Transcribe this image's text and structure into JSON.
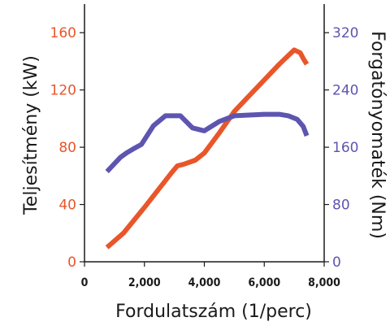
{
  "chart_data": {
    "type": "line",
    "xlabel": "Fordulatszám (1/perc)",
    "ylabel_left": "Teljesítmény (kW)",
    "ylabel_right": "Forgatónyomaték (Nm)",
    "xlim": [
      0,
      8000
    ],
    "ylim_left": [
      0,
      180
    ],
    "ylim_right": [
      0,
      360
    ],
    "x_ticks": [
      "0",
      "2,000",
      "4,000",
      "6,000",
      "8,000"
    ],
    "y_ticks_left": [
      "0",
      "40",
      "80",
      "120",
      "160"
    ],
    "y_ticks_right": [
      "0",
      "80",
      "160",
      "240",
      "320"
    ],
    "grid": false,
    "colors": {
      "power": "#e8562a",
      "torque": "#5d55b0",
      "axis": "#1a1a1a"
    },
    "series": [
      {
        "axis": "left",
        "color": "#e8562a",
        "points": [
          [
            750,
            10
          ],
          [
            1300,
            20
          ],
          [
            2000,
            38
          ],
          [
            2900,
            62
          ],
          [
            3100,
            67
          ],
          [
            3300,
            68
          ],
          [
            3700,
            71
          ],
          [
            4000,
            76
          ],
          [
            4500,
            90
          ],
          [
            5000,
            105
          ],
          [
            5500,
            116
          ],
          [
            6000,
            127
          ],
          [
            6500,
            138
          ],
          [
            6900,
            146
          ],
          [
            7000,
            148
          ],
          [
            7200,
            146
          ],
          [
            7300,
            142
          ],
          [
            7420,
            138
          ]
        ]
      },
      {
        "axis": "right",
        "color": "#5d55b0",
        "points": [
          [
            750,
            126
          ],
          [
            1200,
            146
          ],
          [
            1400,
            152
          ],
          [
            1600,
            157
          ],
          [
            1900,
            164
          ],
          [
            2300,
            190
          ],
          [
            2700,
            204
          ],
          [
            3200,
            204
          ],
          [
            3600,
            187
          ],
          [
            4000,
            183
          ],
          [
            4500,
            196
          ],
          [
            5000,
            204
          ],
          [
            5500,
            205
          ],
          [
            6000,
            206
          ],
          [
            6500,
            206
          ],
          [
            6800,
            204
          ],
          [
            7100,
            199
          ],
          [
            7300,
            189
          ],
          [
            7420,
            176
          ]
        ]
      }
    ]
  }
}
